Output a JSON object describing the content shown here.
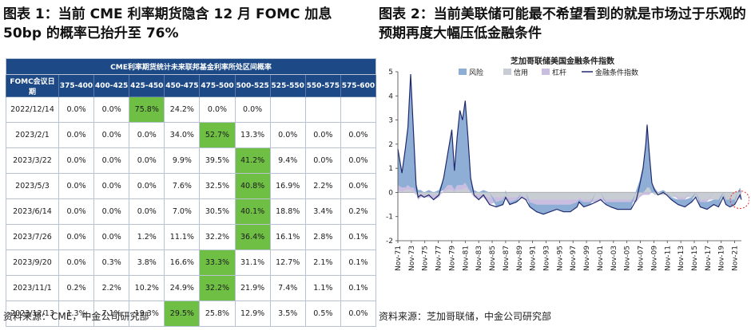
{
  "left": {
    "title": "图表 1：当前 CME 利率期货隐含 12 月 FOMC 加息 50bp 的概率已抬升至 76%",
    "source": "资料来源：CME，中金公司研究部"
  },
  "right": {
    "title": "图表 2：当前美联储可能最不希望看到的就是市场过于乐观的预期再度大幅压低金融条件",
    "source": "资料来源：芝加哥联储，中金公司研究部"
  },
  "table": {
    "caption": "CME利率期货统计未来联邦基金利率所处区间概率",
    "date_header": "FOMC会议日期",
    "columns": [
      "375-400",
      "400-425",
      "425-450",
      "450-475",
      "475-500",
      "500-525",
      "525-550",
      "550-575",
      "575-600"
    ],
    "rows": [
      {
        "date": "2022/12/14",
        "values": [
          "0.0%",
          "0.0%",
          "75.8%",
          "24.2%",
          "0.0%",
          "0.0%",
          "",
          "",
          ""
        ],
        "highlight": 2
      },
      {
        "date": "2023/2/1",
        "values": [
          "0.0%",
          "0.0%",
          "0.0%",
          "34.0%",
          "52.7%",
          "13.3%",
          "0.0%",
          "0.0%",
          "0.0%"
        ],
        "highlight": 4
      },
      {
        "date": "2023/3/22",
        "values": [
          "0.0%",
          "0.0%",
          "0.0%",
          "9.9%",
          "39.5%",
          "41.2%",
          "9.4%",
          "0.0%",
          "0.0%"
        ],
        "highlight": 5
      },
      {
        "date": "2023/5/3",
        "values": [
          "0.0%",
          "0.0%",
          "0.0%",
          "7.6%",
          "32.5%",
          "40.8%",
          "16.9%",
          "2.2%",
          "0.0%"
        ],
        "highlight": 5
      },
      {
        "date": "2023/6/14",
        "values": [
          "0.0%",
          "0.0%",
          "0.0%",
          "7.0%",
          "30.5%",
          "40.1%",
          "18.8%",
          "3.4%",
          "0.2%"
        ],
        "highlight": 5
      },
      {
        "date": "2023/7/26",
        "values": [
          "0.0%",
          "0.0%",
          "1.2%",
          "11.1%",
          "32.2%",
          "36.4%",
          "16.1%",
          "2.8%",
          "0.1%"
        ],
        "highlight": 5
      },
      {
        "date": "2023/9/20",
        "values": [
          "0.0%",
          "0.3%",
          "3.8%",
          "16.6%",
          "33.3%",
          "31.1%",
          "12.7%",
          "2.1%",
          "0.1%"
        ],
        "highlight": 4
      },
      {
        "date": "2023/11/1",
        "values": [
          "0.2%",
          "2.2%",
          "10.2%",
          "24.9%",
          "32.2%",
          "21.9%",
          "7.4%",
          "1.1%",
          "0.1%"
        ],
        "highlight": 4
      },
      {
        "date": "2023/12/13",
        "values": [
          "1.3%",
          "7.1%",
          "19.3%",
          "29.5%",
          "25.8%",
          "12.9%",
          "3.5%",
          "0.5%",
          "0.0%"
        ],
        "highlight": 3
      }
    ]
  },
  "chart_data": {
    "type": "area",
    "title": "芝加哥联储美国金融条件指数",
    "legend": [
      "风险",
      "信用",
      "杠杆",
      "金融条件指数"
    ],
    "legend_placement": "top",
    "colors": {
      "risk": "#8eaed6",
      "credit": "#c8cdd3",
      "leverage": "#c9bde0",
      "index": "#1f2a6e",
      "zero_line": "#888888",
      "highlight_circle": "#e03030"
    },
    "ylim": [
      -2,
      5
    ],
    "yticks": [
      -2,
      -1,
      0,
      1,
      2,
      3,
      4,
      5
    ],
    "xticks": [
      "Nov-71",
      "Nov-73",
      "Nov-75",
      "Nov-77",
      "Nov-79",
      "Nov-81",
      "Nov-83",
      "Nov-85",
      "Nov-87",
      "Nov-89",
      "Nov-91",
      "Nov-93",
      "Nov-95",
      "Nov-97",
      "Nov-99",
      "Nov-01",
      "Nov-03",
      "Nov-05",
      "Nov-07",
      "Nov-09",
      "Nov-11",
      "Nov-13",
      "Nov-15",
      "Nov-17",
      "Nov-19",
      "Nov-21"
    ],
    "x": [
      1971.9,
      1972.5,
      1973.0,
      1973.4,
      1973.8,
      1974.2,
      1974.6,
      1974.9,
      1975.3,
      1975.8,
      1976.5,
      1977.2,
      1978.0,
      1978.7,
      1979.3,
      1979.9,
      1980.3,
      1980.7,
      1981.1,
      1981.5,
      1981.9,
      1982.3,
      1982.7,
      1983.2,
      1983.9,
      1984.6,
      1985.5,
      1986.5,
      1987.5,
      1987.9,
      1988.5,
      1989.5,
      1990.3,
      1990.9,
      1991.5,
      1992.5,
      1993.5,
      1994.5,
      1995.5,
      1996.5,
      1997.5,
      1998.5,
      1998.8,
      1999.5,
      2000.5,
      2001.3,
      2002.0,
      2002.8,
      2003.5,
      2004.5,
      2005.5,
      2006.5,
      2007.3,
      2007.8,
      2008.3,
      2008.7,
      2008.9,
      2009.2,
      2009.6,
      2010.0,
      2010.5,
      2011.3,
      2011.8,
      2012.5,
      2013.5,
      2014.5,
      2015.5,
      2016.1,
      2016.8,
      2017.8,
      2018.8,
      2019.5,
      2020.2,
      2020.6,
      2021.2,
      2021.9,
      2022.3,
      2022.7,
      2022.9
    ],
    "series": [
      {
        "name": "金融条件指数",
        "values": [
          1.8,
          0.8,
          1.8,
          2.7,
          4.9,
          2.6,
          0.3,
          -0.2,
          -0.1,
          -0.2,
          -0.1,
          -0.3,
          -0.1,
          0.6,
          1.6,
          2.6,
          0.9,
          2.3,
          3.4,
          3.0,
          3.8,
          2.3,
          0.6,
          -0.1,
          -0.3,
          -0.1,
          -0.5,
          -0.6,
          -0.5,
          -0.2,
          -0.5,
          -0.4,
          -0.2,
          -0.3,
          -0.6,
          -0.8,
          -0.9,
          -0.8,
          -0.7,
          -0.8,
          -0.8,
          -0.6,
          -0.4,
          -0.6,
          -0.5,
          -0.4,
          -0.3,
          -0.5,
          -0.6,
          -0.7,
          -0.7,
          -0.7,
          -0.3,
          0.3,
          1.0,
          2.0,
          2.8,
          1.7,
          0.4,
          0.1,
          -0.1,
          0.0,
          -0.1,
          -0.3,
          -0.5,
          -0.6,
          -0.4,
          -0.2,
          -0.6,
          -0.7,
          -0.5,
          -0.6,
          -0.2,
          -0.5,
          -0.6,
          -0.5,
          -0.3,
          -0.1,
          -0.3
        ]
      },
      {
        "name": "风险",
        "values": [
          1.5,
          0.6,
          1.6,
          2.4,
          4.7,
          2.4,
          0.4,
          0.1,
          0.1,
          0.0,
          0.1,
          0.0,
          0.1,
          0.5,
          1.3,
          2.3,
          0.8,
          2.0,
          3.1,
          2.7,
          3.4,
          2.1,
          0.6,
          0.1,
          0.0,
          0.1,
          0.0,
          -0.2,
          -0.2,
          0.1,
          -0.1,
          -0.1,
          0.0,
          0.0,
          -0.2,
          -0.3,
          -0.4,
          -0.3,
          -0.2,
          -0.3,
          -0.3,
          -0.2,
          -0.1,
          -0.2,
          -0.1,
          0.0,
          0.0,
          -0.1,
          -0.2,
          -0.3,
          -0.3,
          -0.3,
          0.1,
          0.5,
          1.1,
          2.0,
          2.7,
          1.6,
          0.4,
          0.2,
          0.0,
          0.1,
          0.0,
          -0.1,
          -0.2,
          -0.3,
          -0.2,
          0.0,
          -0.2,
          -0.3,
          -0.2,
          -0.3,
          0.0,
          -0.2,
          -0.3,
          -0.2,
          0.0,
          0.2,
          0.0
        ]
      },
      {
        "name": "信用",
        "values": [
          0.1,
          0.0,
          0.1,
          0.1,
          0.1,
          0.0,
          -0.1,
          -0.1,
          -0.1,
          -0.1,
          -0.1,
          -0.1,
          -0.1,
          0.0,
          0.1,
          0.1,
          0.0,
          0.1,
          0.1,
          0.1,
          0.2,
          0.1,
          0.0,
          -0.1,
          -0.1,
          -0.1,
          -0.2,
          -0.2,
          -0.2,
          -0.2,
          -0.2,
          -0.2,
          -0.1,
          -0.2,
          -0.3,
          -0.3,
          -0.3,
          -0.3,
          -0.3,
          -0.3,
          -0.3,
          -0.3,
          -0.2,
          -0.3,
          -0.3,
          -0.3,
          -0.2,
          -0.3,
          -0.3,
          -0.3,
          -0.3,
          -0.3,
          -0.3,
          -0.1,
          0.0,
          0.1,
          0.2,
          0.2,
          0.0,
          -0.1,
          -0.1,
          -0.1,
          -0.1,
          -0.2,
          -0.2,
          -0.2,
          -0.2,
          -0.2,
          -0.3,
          -0.3,
          -0.3,
          -0.3,
          -0.2,
          -0.3,
          -0.3,
          -0.3,
          -0.3,
          -0.2,
          -0.3
        ]
      },
      {
        "name": "杠杆",
        "values": [
          0.2,
          0.2,
          0.1,
          0.2,
          0.1,
          0.2,
          0.0,
          -0.2,
          -0.1,
          -0.1,
          -0.1,
          -0.2,
          -0.1,
          0.1,
          0.2,
          0.2,
          0.1,
          0.2,
          0.2,
          0.2,
          0.2,
          0.1,
          0.0,
          -0.1,
          -0.2,
          -0.1,
          -0.3,
          -0.2,
          -0.1,
          -0.1,
          -0.2,
          -0.1,
          -0.1,
          -0.1,
          -0.1,
          -0.2,
          -0.2,
          -0.2,
          -0.2,
          -0.2,
          -0.2,
          -0.1,
          -0.1,
          -0.1,
          -0.1,
          -0.1,
          -0.1,
          -0.1,
          -0.1,
          -0.1,
          -0.1,
          -0.1,
          -0.1,
          -0.1,
          -0.1,
          -0.1,
          -0.1,
          -0.1,
          0.0,
          0.0,
          0.0,
          0.0,
          0.0,
          0.0,
          -0.1,
          -0.1,
          0.0,
          0.0,
          -0.1,
          -0.1,
          0.0,
          0.0,
          0.0,
          0.0,
          0.0,
          0.0,
          0.0,
          -0.1,
          0.0
        ]
      }
    ]
  }
}
